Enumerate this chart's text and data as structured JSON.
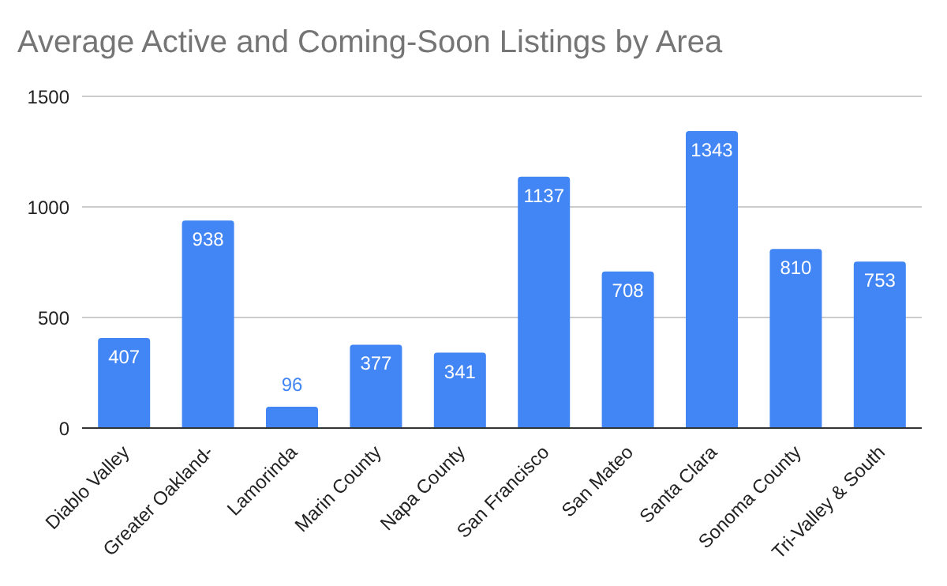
{
  "chart_data": {
    "type": "bar",
    "title": "Average Active and Coming-Soon Listings by Area",
    "categories": [
      "Diablo Valley",
      "Greater Oakland-",
      "Lamorinda",
      "Marin County",
      "Napa County",
      "San Francisco",
      "San Mateo",
      "Santa Clara",
      "Sonoma County",
      "Tri-Valley & South"
    ],
    "values": [
      407,
      938,
      96,
      377,
      341,
      1137,
      708,
      1343,
      810,
      753
    ],
    "color": "#4285f4",
    "ylim": [
      0,
      1500
    ],
    "yticks": [
      0,
      500,
      1000,
      1500
    ],
    "grid": "y",
    "data_labels": true
  }
}
